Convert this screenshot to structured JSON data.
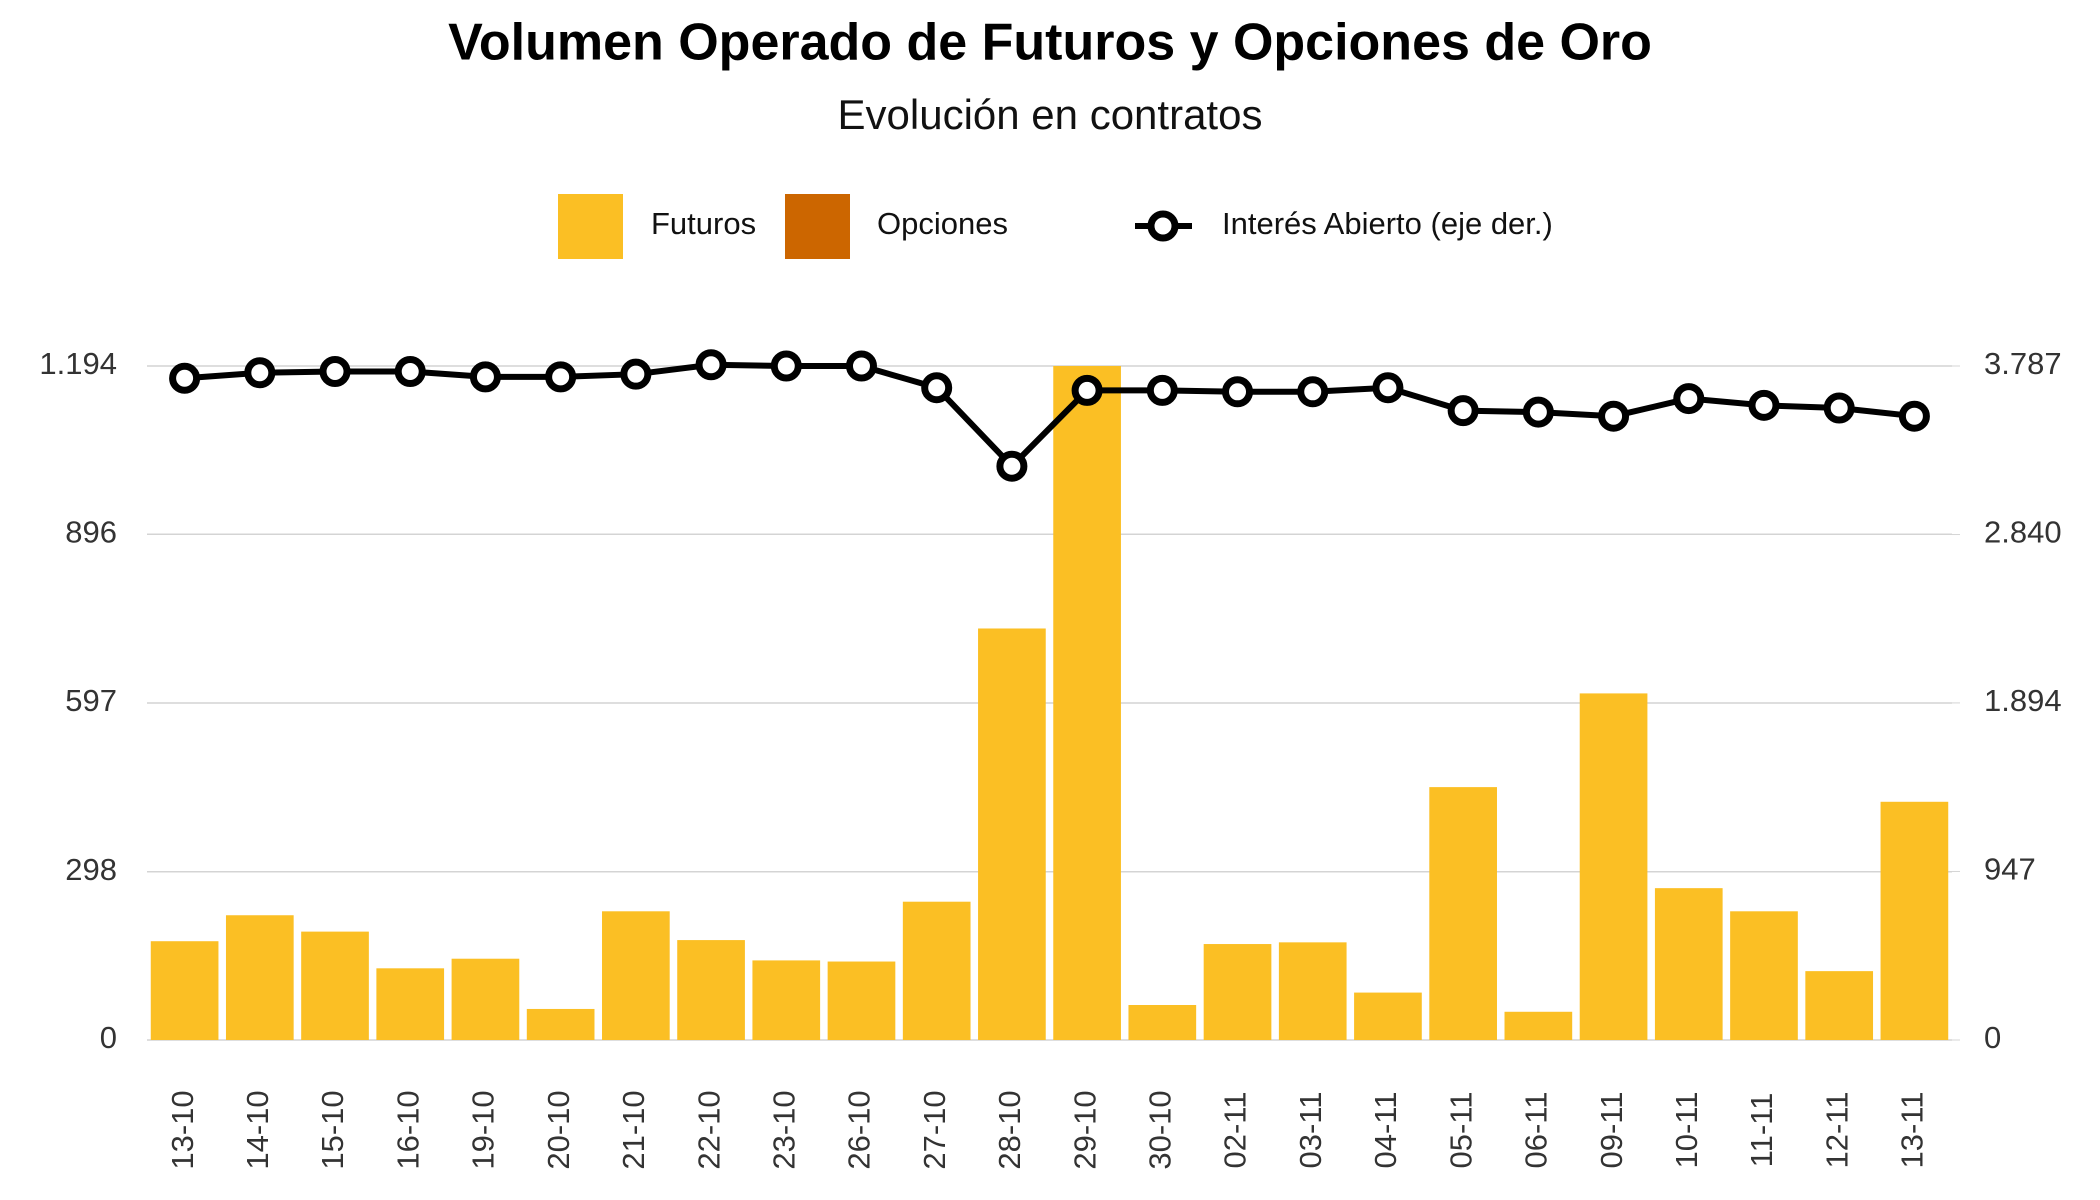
{
  "chart_data": {
    "type": "bar",
    "title": "Volumen Operado de Futuros y Opciones de Oro",
    "subtitle": "Evolución en contratos",
    "categories": [
      "13-10",
      "14-10",
      "15-10",
      "16-10",
      "19-10",
      "20-10",
      "21-10",
      "22-10",
      "23-10",
      "26-10",
      "27-10",
      "28-10",
      "29-10",
      "30-10",
      "02-11",
      "03-11",
      "04-11",
      "05-11",
      "06-11",
      "09-11",
      "10-11",
      "11-11",
      "12-11",
      "13-11"
    ],
    "series": [
      {
        "name": "Futuros",
        "color": "#fbbf24",
        "values": [
          175,
          221,
          192,
          127,
          144,
          55,
          228,
          177,
          141,
          139,
          245,
          729,
          1194,
          62,
          170,
          173,
          84,
          448,
          50,
          614,
          269,
          228,
          122,
          422
        ]
      },
      {
        "name": "Opciones",
        "color": "#cc6600",
        "values": [
          0,
          0,
          0,
          0,
          0,
          0,
          0,
          0,
          0,
          0,
          0,
          0,
          0,
          0,
          0,
          0,
          0,
          0,
          0,
          0,
          0,
          0,
          0,
          0
        ]
      },
      {
        "name": "Interés Abierto (eje der.)",
        "color": "#000000",
        "axis": "y2",
        "values": [
          3718,
          3749,
          3756,
          3756,
          3726,
          3726,
          3741,
          3794,
          3787,
          3787,
          3665,
          3224,
          3650,
          3650,
          3642,
          3642,
          3665,
          3536,
          3528,
          3505,
          3604,
          3566,
          3551,
          3505
        ]
      }
    ],
    "ylim": [
      0,
      1194
    ],
    "yticks": [
      0,
      298,
      597,
      896,
      {
        "value": 1194,
        "label": "1.194"
      }
    ],
    "y2lim": [
      0,
      3787
    ],
    "y2ticks": [
      0,
      947,
      {
        "value": 1894,
        "label": "1.894"
      },
      {
        "value": 2840,
        "label": "2.840"
      },
      {
        "value": 3787,
        "label": "3.787"
      }
    ],
    "grid": true
  }
}
